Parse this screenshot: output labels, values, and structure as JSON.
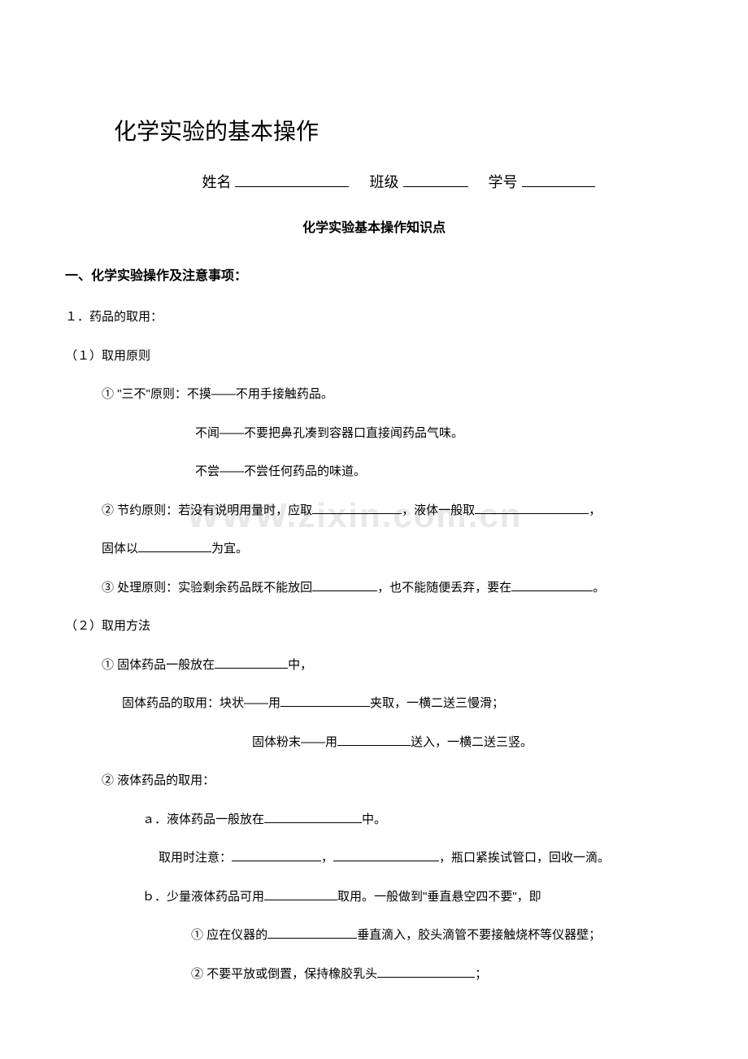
{
  "watermark": "WWW.zixin.com.cn",
  "title": "化学实验的基本操作",
  "header": {
    "name_label": "姓名",
    "class_label": "班级",
    "number_label": "学号"
  },
  "subtitle": "化学实验基本操作知识点",
  "section1": {
    "header": "一、化学实验操作及注意事项：",
    "item1": "１．药品的取用：",
    "item1_1": "（１）取用原则",
    "item1_1_1": "① \"三不\"原则：不摸——不用手接触药品。",
    "item1_1_1b": "不闻——不要把鼻孔凑到容器口直接闻药品气味。",
    "item1_1_1c": "不尝——不尝任何药品的味道。",
    "item1_1_2_pre": "② 节约原则：若没有说明用量时，应取",
    "item1_1_2_mid": "，液体一般取",
    "item1_1_2_end": "，",
    "item1_1_2b_pre": "固体以",
    "item1_1_2b_end": "为宜。",
    "item1_1_3_pre": "③ 处理原则：实验剩余药品既不能放回",
    "item1_1_3_mid": "，也不能随便丢弃，要在",
    "item1_1_3_end": "。",
    "item1_2": "（２）取用方法",
    "item1_2_1_pre": "① 固体药品一般放在",
    "item1_2_1_end": "中，",
    "item1_2_1b_pre": "固体药品的取用：块状——用",
    "item1_2_1b_end": "夹取，一横二送三慢滑；",
    "item1_2_1c_pre": "固体粉末——用",
    "item1_2_1c_end": "送入，一横二送三竖。",
    "item1_2_2": "② 液体药品的取用：",
    "item1_2_2a_pre": "ａ．液体药品一般放在",
    "item1_2_2a_end": "中。",
    "item1_2_2a2_pre": "取用时注意：",
    "item1_2_2a2_mid": "，",
    "item1_2_2a2_end": "，瓶口紧挨试管口，回收一滴。",
    "item1_2_2b_pre": "ｂ．少量液体药品可用",
    "item1_2_2b_end": "取用。一般做到\"垂直悬空四不要\"，即",
    "item1_2_2b1_pre": "① 应在仪器的",
    "item1_2_2b1_end": "垂直滴入，胶头滴管不要接触烧杯等仪器壁；",
    "item1_2_2b2_pre": "② 不要平放或倒置，保持橡胶乳头",
    "item1_2_2b2_end": "；"
  },
  "colors": {
    "text": "#000000",
    "background": "#ffffff",
    "watermark": "#e8e8e8",
    "blank_border": "#000000"
  },
  "typography": {
    "title_fontsize": 28,
    "body_fontsize": 15,
    "subtitle_fontsize": 16,
    "header_fontsize": 18,
    "watermark_fontsize": 42
  }
}
